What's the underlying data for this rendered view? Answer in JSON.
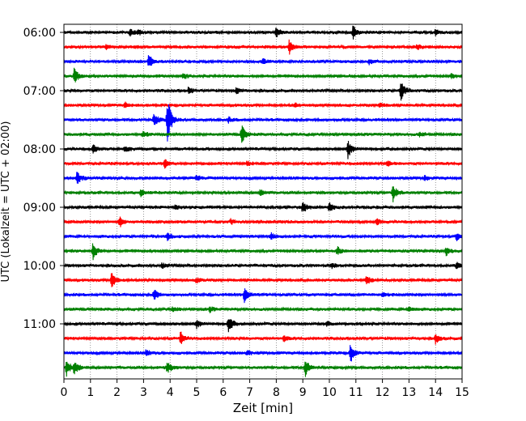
{
  "chart_data": {
    "type": "line",
    "xlabel": "Zeit  [min]",
    "ylabel": "UTC (Lokalzeit = UTC + 02:00)",
    "xlim": [
      0,
      15
    ],
    "x_ticks": [
      0,
      1,
      2,
      3,
      4,
      5,
      6,
      7,
      8,
      9,
      10,
      11,
      12,
      13,
      14,
      15
    ],
    "y_tick_labels": [
      "06:00",
      "07:00",
      "08:00",
      "09:00",
      "10:00",
      "11:00"
    ],
    "grid": "vertical dotted",
    "trace_minutes_each": 15,
    "colors": [
      "#000000",
      "#ff0000",
      "#0000ff",
      "#008000"
    ],
    "series": [
      {
        "start": "06:00",
        "color": "#000000",
        "events": [
          [
            2.5,
            4
          ],
          [
            2.8,
            3
          ],
          [
            8.0,
            6
          ],
          [
            10.9,
            8
          ],
          [
            14.0,
            3
          ]
        ]
      },
      {
        "start": "06:15",
        "color": "#ff0000",
        "events": [
          [
            1.6,
            4
          ],
          [
            8.5,
            10
          ],
          [
            13.3,
            3
          ]
        ]
      },
      {
        "start": "06:30",
        "color": "#0000ff",
        "events": [
          [
            3.2,
            8
          ],
          [
            7.5,
            3
          ],
          [
            11.5,
            3
          ]
        ]
      },
      {
        "start": "06:45",
        "color": "#008000",
        "events": [
          [
            0.4,
            10
          ],
          [
            4.5,
            3
          ],
          [
            14.6,
            3
          ]
        ]
      },
      {
        "start": "07:00",
        "color": "#000000",
        "events": [
          [
            4.7,
            4
          ],
          [
            12.7,
            12
          ],
          [
            6.5,
            3
          ]
        ]
      },
      {
        "start": "07:15",
        "color": "#ff0000",
        "events": [
          [
            2.3,
            3
          ],
          [
            8.7,
            3
          ],
          [
            11.9,
            3
          ]
        ]
      },
      {
        "start": "07:30",
        "color": "#0000ff",
        "events": [
          [
            3.4,
            8
          ],
          [
            3.9,
            30
          ],
          [
            6.2,
            3
          ]
        ]
      },
      {
        "start": "07:45",
        "color": "#008000",
        "events": [
          [
            6.7,
            12
          ],
          [
            3.0,
            3
          ],
          [
            13.4,
            3
          ]
        ]
      },
      {
        "start": "08:00",
        "color": "#000000",
        "events": [
          [
            1.1,
            6
          ],
          [
            2.3,
            4
          ],
          [
            10.7,
            11
          ]
        ]
      },
      {
        "start": "08:15",
        "color": "#ff0000",
        "events": [
          [
            3.8,
            5
          ],
          [
            6.9,
            3
          ],
          [
            12.2,
            3
          ]
        ]
      },
      {
        "start": "08:30",
        "color": "#0000ff",
        "events": [
          [
            0.5,
            8
          ],
          [
            5.0,
            3
          ],
          [
            13.6,
            3
          ]
        ]
      },
      {
        "start": "08:45",
        "color": "#008000",
        "events": [
          [
            2.9,
            4
          ],
          [
            7.4,
            3
          ],
          [
            12.4,
            10
          ]
        ]
      },
      {
        "start": "09:00",
        "color": "#000000",
        "events": [
          [
            9.0,
            7
          ],
          [
            10.0,
            6
          ],
          [
            4.2,
            3
          ]
        ]
      },
      {
        "start": "09:15",
        "color": "#ff0000",
        "events": [
          [
            2.1,
            7
          ],
          [
            6.3,
            3
          ],
          [
            11.8,
            3
          ]
        ]
      },
      {
        "start": "09:30",
        "color": "#0000ff",
        "events": [
          [
            3.9,
            5
          ],
          [
            7.8,
            4
          ],
          [
            14.8,
            5
          ]
        ]
      },
      {
        "start": "09:45",
        "color": "#008000",
        "events": [
          [
            1.1,
            10
          ],
          [
            10.3,
            5
          ],
          [
            14.4,
            6
          ]
        ]
      },
      {
        "start": "10:00",
        "color": "#000000",
        "events": [
          [
            3.7,
            3
          ],
          [
            10.1,
            3
          ],
          [
            14.8,
            4
          ]
        ]
      },
      {
        "start": "10:15",
        "color": "#ff0000",
        "events": [
          [
            1.8,
            10
          ],
          [
            11.4,
            6
          ],
          [
            5.0,
            3
          ]
        ]
      },
      {
        "start": "10:30",
        "color": "#0000ff",
        "events": [
          [
            3.4,
            7
          ],
          [
            6.8,
            9
          ],
          [
            12.0,
            3
          ]
        ]
      },
      {
        "start": "10:45",
        "color": "#008000",
        "events": [
          [
            4.1,
            3
          ],
          [
            5.5,
            3
          ],
          [
            13.0,
            3
          ]
        ]
      },
      {
        "start": "11:00",
        "color": "#000000",
        "events": [
          [
            5.0,
            5
          ],
          [
            6.2,
            11
          ],
          [
            9.9,
            3
          ]
        ]
      },
      {
        "start": "11:15",
        "color": "#ff0000",
        "events": [
          [
            4.4,
            8
          ],
          [
            14.0,
            6
          ],
          [
            8.3,
            3
          ]
        ]
      },
      {
        "start": "11:30",
        "color": "#0000ff",
        "events": [
          [
            3.1,
            4
          ],
          [
            10.8,
            12
          ],
          [
            6.9,
            3
          ]
        ]
      },
      {
        "start": "11:45",
        "color": "#008000",
        "events": [
          [
            0.1,
            11
          ],
          [
            0.4,
            8
          ],
          [
            3.9,
            7
          ],
          [
            9.1,
            10
          ]
        ]
      }
    ]
  }
}
